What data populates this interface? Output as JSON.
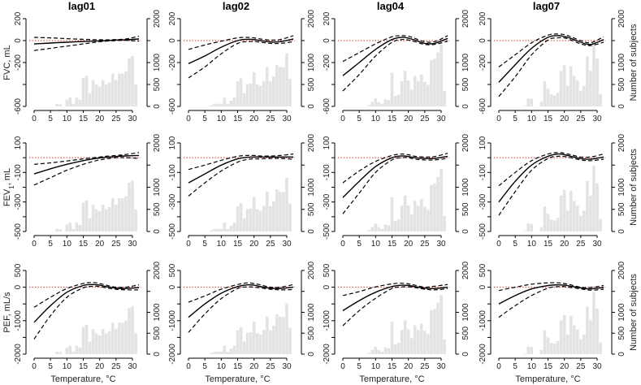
{
  "chart_data": {
    "type": "line",
    "description_labels": {
      "xlabel": "Temperature, °C",
      "right_ylabel": "Number of subjects"
    },
    "columns": [
      "lag01",
      "lag02",
      "lag04",
      "lag07"
    ],
    "rows": [
      {
        "ylabel": "FVC, mL",
        "ylabel_main": "FVC, mL",
        "ylim": [
          -600,
          200
        ],
        "ticks": [
          -600,
          -400,
          -200,
          0,
          200
        ],
        "tick_labels": [
          "-600",
          "",
          "-200",
          "0",
          "200"
        ]
      },
      {
        "ylabel": "FEV1, mL",
        "ylabel_main": "FEV",
        "ylabel_sub": "1",
        "ylabel_tail": ", mL",
        "ylim": [
          -500,
          100
        ],
        "ticks": [
          -500,
          -400,
          -300,
          -200,
          -100,
          0,
          100
        ],
        "tick_labels": [
          "-500",
          "",
          "-300",
          "",
          "-100",
          "",
          "100"
        ]
      },
      {
        "ylabel": "PEF, mL/s",
        "ylabel_main": "PEF, mL/s",
        "ylim": [
          -2000,
          500
        ],
        "ticks": [
          -2000,
          -1500,
          -1000,
          -500,
          0,
          500
        ],
        "tick_labels": [
          "-2000",
          "",
          "-1000",
          "",
          "0",
          "500"
        ]
      }
    ],
    "xlim": [
      -2,
      33
    ],
    "xticks": [
      0,
      5,
      10,
      15,
      20,
      25,
      30
    ],
    "right_axis": {
      "ylim": [
        0,
        2000
      ],
      "ticks": [
        0,
        500,
        1000,
        1500,
        2000
      ],
      "tick_labels": [
        "0",
        "500",
        "1000",
        "",
        "2000"
      ]
    },
    "reference_line": 0,
    "colors": {
      "estimate": "#000000",
      "ci": "#000000",
      "reference": "#cc3333",
      "histogram": "#e3e3e3"
    },
    "knots_x": [
      0,
      5,
      10,
      15,
      18,
      20,
      22,
      25,
      28,
      32
    ],
    "histogram_bins": [
      7,
      8,
      9,
      10,
      11,
      12,
      13,
      14,
      15,
      16,
      17,
      18,
      19,
      20,
      21,
      22,
      23,
      24,
      25,
      26,
      27,
      28,
      29,
      30,
      31
    ],
    "histograms": {
      "lag01": [
        60,
        50,
        0,
        150,
        200,
        60,
        200,
        150,
        650,
        700,
        300,
        600,
        500,
        450,
        600,
        500,
        550,
        750,
        600,
        750,
        750,
        800,
        1100,
        1150,
        500
      ],
      "lag02": [
        30,
        60,
        60,
        60,
        200,
        60,
        130,
        200,
        570,
        640,
        300,
        510,
        520,
        780,
        500,
        470,
        580,
        900,
        570,
        680,
        950,
        900,
        890,
        1210,
        630
      ],
      "lag04": [
        0,
        30,
        100,
        180,
        100,
        60,
        160,
        140,
        770,
        240,
        270,
        580,
        810,
        590,
        380,
        690,
        580,
        730,
        560,
        490,
        1050,
        1080,
        1230,
        1410,
        350
      ],
      "lag07": [
        0,
        10,
        180,
        170,
        0,
        0,
        100,
        570,
        400,
        270,
        250,
        310,
        810,
        940,
        470,
        920,
        690,
        590,
        360,
        470,
        1140,
        810,
        1490,
        1090,
        280
      ]
    },
    "panels": [
      {
        "row": 0,
        "lag": "lag01",
        "est": [
          -30,
          -22,
          -15,
          -8,
          -4,
          -2,
          0,
          5,
          8,
          15
        ],
        "lower": [
          -90,
          -70,
          -50,
          -30,
          -18,
          -10,
          -5,
          0,
          2,
          -5
        ],
        "upper": [
          30,
          25,
          18,
          12,
          10,
          8,
          7,
          10,
          15,
          40
        ]
      },
      {
        "row": 0,
        "lag": "lag02",
        "est": [
          -210,
          -140,
          -60,
          0,
          12,
          10,
          0,
          -12,
          -10,
          15
        ],
        "lower": [
          -340,
          -240,
          -120,
          -25,
          -10,
          -8,
          -15,
          -25,
          -25,
          -10
        ],
        "upper": [
          -80,
          -40,
          -5,
          25,
          30,
          25,
          15,
          5,
          10,
          45
        ]
      },
      {
        "row": 0,
        "lag": "lag04",
        "est": [
          -320,
          -200,
          -80,
          10,
          30,
          22,
          5,
          -25,
          -25,
          20
        ],
        "lower": [
          -460,
          -310,
          -140,
          -15,
          10,
          5,
          -10,
          -35,
          -35,
          -5
        ],
        "upper": [
          -190,
          -110,
          -30,
          35,
          45,
          40,
          20,
          -10,
          -10,
          45
        ]
      },
      {
        "row": 0,
        "lag": "lag07",
        "est": [
          -380,
          -220,
          -70,
          30,
          45,
          38,
          20,
          -15,
          -35,
          10
        ],
        "lower": [
          -510,
          -330,
          -130,
          5,
          25,
          25,
          5,
          -30,
          -45,
          -15
        ],
        "upper": [
          -240,
          -130,
          -20,
          50,
          60,
          55,
          35,
          0,
          -20,
          35
        ]
      },
      {
        "row": 1,
        "lag": "lag01",
        "est": [
          -110,
          -75,
          -45,
          -20,
          -8,
          -2,
          3,
          8,
          12,
          15
        ],
        "lower": [
          -185,
          -135,
          -85,
          -45,
          -25,
          -15,
          -8,
          0,
          0,
          -5
        ],
        "upper": [
          -45,
          -35,
          -22,
          -8,
          0,
          5,
          10,
          15,
          22,
          35
        ]
      },
      {
        "row": 1,
        "lag": "lag02",
        "est": [
          -170,
          -110,
          -50,
          -8,
          3,
          5,
          5,
          5,
          5,
          5
        ],
        "lower": [
          -260,
          -170,
          -90,
          -30,
          -12,
          -8,
          -8,
          -5,
          -5,
          -10
        ],
        "upper": [
          -80,
          -50,
          -18,
          10,
          15,
          15,
          12,
          12,
          15,
          25
        ]
      },
      {
        "row": 1,
        "lag": "lag04",
        "est": [
          -270,
          -160,
          -60,
          0,
          12,
          8,
          0,
          -5,
          -5,
          10
        ],
        "lower": [
          -380,
          -240,
          -100,
          -15,
          0,
          0,
          -10,
          -15,
          -15,
          -5
        ],
        "upper": [
          -170,
          -90,
          -25,
          15,
          25,
          20,
          10,
          5,
          8,
          30
        ]
      },
      {
        "row": 1,
        "lag": "lag07",
        "est": [
          -300,
          -160,
          -50,
          10,
          25,
          20,
          10,
          -5,
          -10,
          5
        ],
        "lower": [
          -390,
          -230,
          -85,
          -5,
          10,
          8,
          0,
          -15,
          -20,
          -10
        ],
        "upper": [
          -190,
          -100,
          -20,
          25,
          35,
          30,
          20,
          5,
          5,
          25
        ]
      },
      {
        "row": 2,
        "lag": "lag01",
        "est": [
          -1050,
          -550,
          -150,
          50,
          80,
          60,
          20,
          -30,
          -40,
          -10
        ],
        "lower": [
          -1550,
          -850,
          -300,
          -20,
          30,
          20,
          -20,
          -60,
          -80,
          -80
        ],
        "upper": [
          -600,
          -300,
          -40,
          110,
          140,
          110,
          60,
          0,
          0,
          70
        ]
      },
      {
        "row": 2,
        "lag": "lag02",
        "est": [
          -900,
          -500,
          -180,
          20,
          70,
          60,
          20,
          -30,
          -40,
          0
        ],
        "lower": [
          -1350,
          -800,
          -340,
          -40,
          10,
          0,
          -20,
          -60,
          -80,
          -70
        ],
        "upper": [
          -450,
          -260,
          -60,
          80,
          130,
          110,
          70,
          0,
          0,
          80
        ]
      },
      {
        "row": 2,
        "lag": "lag04",
        "est": [
          -700,
          -400,
          -150,
          20,
          60,
          50,
          20,
          -30,
          -40,
          0
        ],
        "lower": [
          -1150,
          -700,
          -330,
          -40,
          10,
          10,
          -10,
          -60,
          -80,
          -40
        ],
        "upper": [
          -250,
          -130,
          10,
          100,
          120,
          100,
          60,
          0,
          30,
          80
        ]
      },
      {
        "row": 2,
        "lag": "lag07",
        "est": [
          -500,
          -250,
          -50,
          50,
          70,
          60,
          30,
          -20,
          -50,
          -10
        ],
        "lower": [
          -900,
          -550,
          -250,
          -30,
          20,
          20,
          -10,
          -50,
          -90,
          -60
        ],
        "upper": [
          -100,
          0,
          90,
          130,
          130,
          110,
          70,
          0,
          -10,
          50
        ]
      }
    ]
  }
}
